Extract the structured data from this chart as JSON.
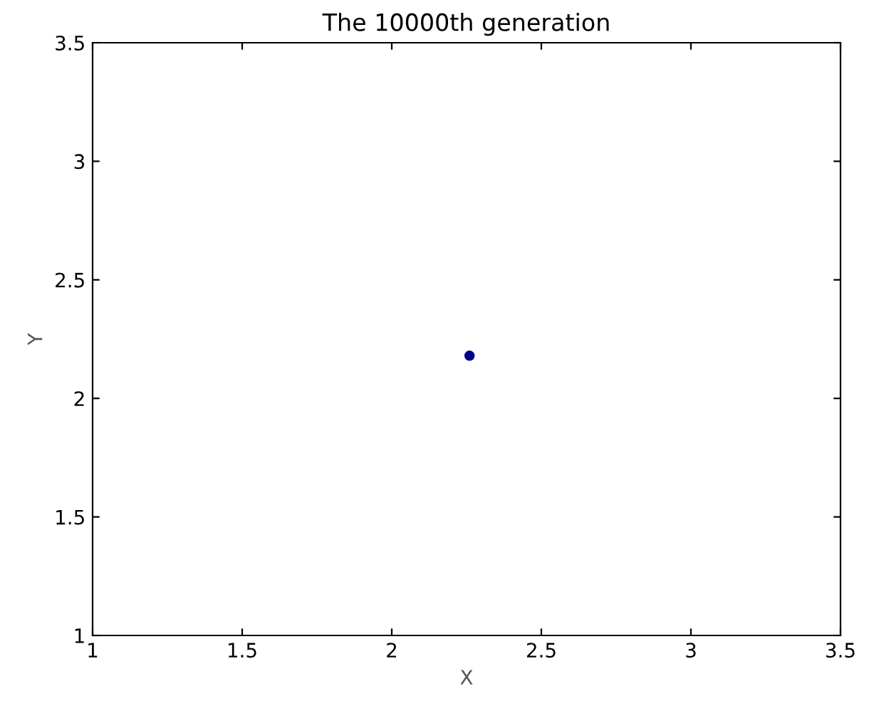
{
  "chart_data": {
    "type": "scatter",
    "title": "The 10000th generation",
    "xlabel": "X",
    "ylabel": "Y",
    "x": [
      2.26
    ],
    "values": [
      2.18
    ],
    "color": "#00008b",
    "marker": "circle",
    "xlim": [
      1,
      3.5
    ],
    "xticks": [
      1,
      1.5,
      2,
      2.5,
      3,
      3.5
    ],
    "ylim": [
      1,
      3.5
    ],
    "yticks": [
      1,
      1.5,
      2,
      2.5,
      3,
      3.5
    ],
    "grid": false
  }
}
